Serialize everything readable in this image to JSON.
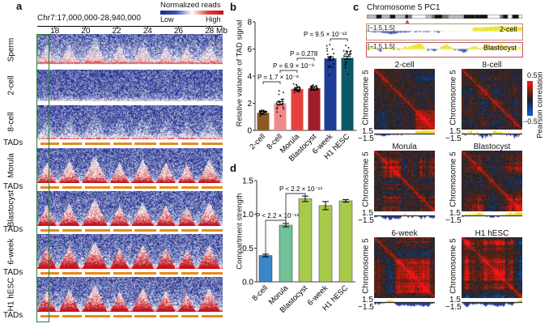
{
  "panel_a": {
    "label": "a",
    "region": "Chr7:17,000,000-28,940,000",
    "legend_title": "Normalized reads",
    "legend_low": "Low",
    "legend_high": "High",
    "axis_ticks": [
      "18",
      "20",
      "22",
      "24",
      "26",
      "28 Mb"
    ],
    "tick_values_mb": [
      18,
      20,
      22,
      24,
      26,
      28
    ],
    "stages": [
      "Sperm",
      "2-cell",
      "8-cell",
      "Morula",
      "Blastocyst",
      "6-week",
      "H1 hESC"
    ],
    "tads_label": "TADs",
    "tad_segments_mb": [
      [
        17.1,
        18.3
      ],
      [
        18.5,
        19.8
      ],
      [
        20.0,
        21.6
      ],
      [
        21.8,
        23.0
      ],
      [
        23.2,
        24.6
      ],
      [
        24.8,
        26.0
      ],
      [
        26.2,
        27.3
      ],
      [
        27.5,
        28.9
      ]
    ],
    "colors": {
      "low": "#1b2a8c",
      "mid": "#ffffff",
      "high": "#c3141e",
      "tad": "#e88a1a",
      "highlight_box": "#2e7d3a"
    }
  },
  "panel_c": {
    "label": "c",
    "title": "Chromosome 5 PC1",
    "track_range": "[−1.5,1.5]",
    "track_labels": [
      "2-cell",
      "Blastocyst"
    ],
    "heatmaps": [
      "2-cell",
      "8-cell",
      "Morula",
      "Blastocyst",
      "6-week",
      "H1 hESC"
    ],
    "axis_label": "Chromosome 5",
    "track_tick_top": "1.5",
    "track_tick_bottom": "−1.5",
    "colorbar_max": "0.5",
    "colorbar_min": "−0.5",
    "colorbar_label": "Pearson correlation"
  },
  "chart_data": [
    {
      "panel": "b",
      "type": "bar",
      "ylabel": "Relative variance of TAD signal",
      "categories": [
        "2-cell",
        "8-cell",
        "Morula",
        "Blastocyst",
        "6-week",
        "H1 hESC"
      ],
      "values": [
        1.3,
        2.0,
        3.05,
        3.1,
        5.3,
        5.35
      ],
      "colors": [
        "#8c5a22",
        "#f08a8a",
        "#e5423d",
        "#a11d2b",
        "#1e3d96",
        "#0d5868"
      ],
      "ylim": [
        0,
        8
      ],
      "yticks": [
        "0",
        "2",
        "4",
        "6",
        "8"
      ],
      "comparisons": [
        {
          "pair": [
            "2-cell",
            "8-cell"
          ],
          "text": "P = 1.7 × 10⁻⁸"
        },
        {
          "pair": [
            "8-cell",
            "Morula"
          ],
          "text": "P = 6.9 × 10⁻⁹"
        },
        {
          "pair": [
            "Morula",
            "Blastocyst"
          ],
          "text": "P = 0.278"
        },
        {
          "pair": [
            "6-week",
            "H1 hESC"
          ],
          "text": "P = 9.5 × 10⁻¹³"
        }
      ]
    },
    {
      "panel": "d",
      "type": "bar",
      "ylabel": "Compartment strength",
      "categories": [
        "8-cell",
        "Morula",
        "Blastocyst",
        "6-week",
        "H1 hESC"
      ],
      "values": [
        0.39,
        0.84,
        1.23,
        1.13,
        1.2
      ],
      "errors": [
        0.02,
        0.025,
        0.04,
        0.06,
        0.02
      ],
      "colors": [
        "#3a86c8",
        "#6fc198",
        "#a7ca4b",
        "#a7ca4b",
        "#a7ca4b"
      ],
      "ylim": [
        0,
        1.5
      ],
      "yticks": [
        "0.0",
        "0.5",
        "1.0",
        "1.5"
      ],
      "comparisons": [
        {
          "pair": [
            "8-cell",
            "Morula"
          ],
          "text": "P < 2.2 × 10⁻¹⁶"
        },
        {
          "pair": [
            "Morula",
            "Blastocyst"
          ],
          "text": "P < 2.2 × 10⁻¹⁶"
        }
      ]
    }
  ]
}
